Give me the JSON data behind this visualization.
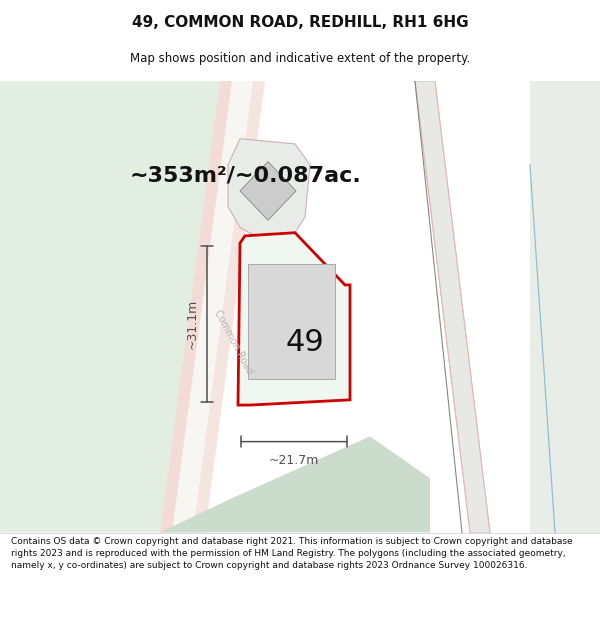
{
  "title_line1": "49, COMMON ROAD, REDHILL, RH1 6HG",
  "title_line2": "Map shows position and indicative extent of the property.",
  "area_text": "~353m²/~0.087ac.",
  "label_49": "49",
  "dim_width": "~21.7m",
  "dim_height": "~31.1m",
  "road_label": "Common Road",
  "footer_text": "Contains OS data © Crown copyright and database right 2021. This information is subject to Crown copyright and database rights 2023 and is reproduced with the permission of HM Land Registry. The polygons (including the associated geometry, namely x, y co-ordinates) are subject to Crown copyright and database rights 2023 Ordnance Survey 100026316.",
  "bg_map_color": "#f0f4f0",
  "left_green_color": "#e2eee2",
  "road_fill_color": "#f8f6f2",
  "road_left_stripe_color": "#f0ccc8",
  "road_right_stripe_color": "#f0ccc8",
  "green_bottom_color": "#ccdccc",
  "right_area_color": "#e8ede8",
  "right_road_fill": "#e0e4dc",
  "right_road_edge": "#c0c8c0",
  "blue_line_color": "#90c0d0",
  "pink_line_color": "#e0b0b0",
  "property_fill": "#f0f6f0",
  "property_border": "#cc0000",
  "property_lw": 2.0,
  "building_fill": "#d8d8d8",
  "building_border": "#a8a8a8",
  "building_lw": 0.7,
  "adj_fill": "#e8ece8",
  "adj_border": "#d0b0b0",
  "adj_lw": 0.8,
  "diamond_fill": "#cccccc",
  "diamond_border": "#909090",
  "diamond_lw": 0.7,
  "road_label_color": "#b8b4b0",
  "dim_color": "#505050",
  "area_text_color": "#111111",
  "label_color": "#111111",
  "title_color": "#111111",
  "footer_color": "#111111",
  "title_fontsize": 11,
  "subtitle_fontsize": 8.5,
  "area_fontsize": 16,
  "label49_fontsize": 22,
  "dim_fontsize": 9,
  "road_label_fontsize": 7,
  "footer_fontsize": 6.5
}
